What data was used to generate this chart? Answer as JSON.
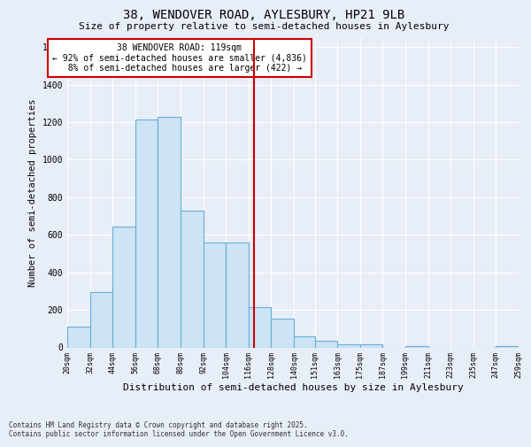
{
  "title_line1": "38, WENDOVER ROAD, AYLESBURY, HP21 9LB",
  "title_line2": "Size of property relative to semi-detached houses in Aylesbury",
  "xlabel": "Distribution of semi-detached houses by size in Aylesbury",
  "ylabel": "Number of semi-detached properties",
  "property_label": "38 WENDOVER ROAD: 119sqm",
  "pct_smaller": 92,
  "count_smaller": 4836,
  "pct_larger": 8,
  "count_larger": 422,
  "bin_edges": [
    20,
    32,
    44,
    56,
    68,
    80,
    92,
    104,
    116,
    128,
    140,
    151,
    163,
    175,
    187,
    199,
    211,
    223,
    235,
    247,
    259
  ],
  "bar_heights": [
    110,
    295,
    645,
    1215,
    1230,
    730,
    560,
    560,
    215,
    155,
    60,
    35,
    15,
    15,
    0,
    5,
    0,
    0,
    0,
    5
  ],
  "bar_color": "#cce4f5",
  "bar_edge_color": "#6aadd5",
  "vline_color": "#cc0000",
  "vline_x": 119,
  "annotation_box_color": "#cc0000",
  "background_color": "#e8eef8",
  "grid_color": "#ffffff",
  "ylim": [
    0,
    1650
  ],
  "yticks": [
    0,
    200,
    400,
    600,
    800,
    1000,
    1200,
    1400,
    1600
  ],
  "footnote": "Contains HM Land Registry data © Crown copyright and database right 2025.\nContains public sector information licensed under the Open Government Licence v3.0."
}
